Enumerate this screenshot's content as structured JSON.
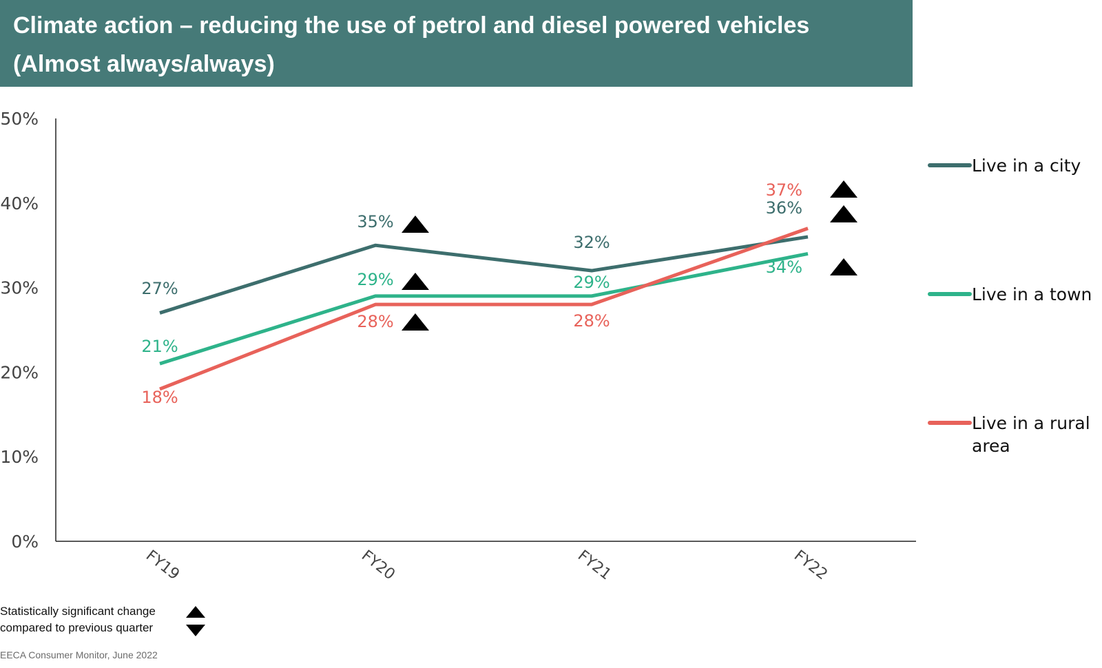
{
  "title": {
    "line1": "Climate action – reducing the use of petrol and diesel powered vehicles",
    "line2": "(Almost always/always)"
  },
  "chart_data": {
    "type": "line",
    "categories": [
      "FY19",
      "FY20",
      "FY21",
      "FY22"
    ],
    "ylim": [
      0,
      50
    ],
    "yticks": [
      "0%",
      "10%",
      "20%",
      "30%",
      "40%",
      "50%"
    ],
    "grid": false,
    "legend_position": "right",
    "series": [
      {
        "name": "Live in a city",
        "color": "#3d6e6d",
        "values": [
          27,
          35,
          32,
          36
        ],
        "labels": [
          "27%",
          "35%",
          "32%",
          "36%"
        ],
        "significant_up": [
          false,
          true,
          false,
          true
        ]
      },
      {
        "name": "Live in a town",
        "color": "#2eb38a",
        "values": [
          21,
          29,
          29,
          34
        ],
        "labels": [
          "21%",
          "29%",
          "29%",
          "34%"
        ],
        "significant_up": [
          false,
          true,
          false,
          true
        ]
      },
      {
        "name": "Live in a rural area",
        "color": "#e8625a",
        "values": [
          18,
          28,
          28,
          37
        ],
        "labels": [
          "18%",
          "28%",
          "28%",
          "37%"
        ],
        "significant_up": [
          false,
          true,
          false,
          true
        ]
      }
    ]
  },
  "legend": {
    "city": "Live in a city",
    "town": "Live in a town",
    "rural_line1": "Live in a rural",
    "rural_line2": "area"
  },
  "footnote": {
    "line1": "Statistically significant change",
    "line2": "compared to previous quarter"
  },
  "source": "EECA Consumer Monitor, June 2022"
}
